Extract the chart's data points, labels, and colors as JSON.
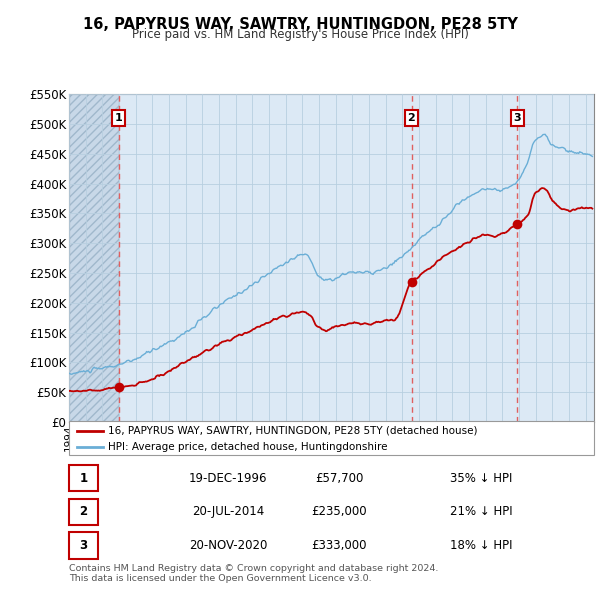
{
  "title": "16, PAPYRUS WAY, SAWTRY, HUNTINGDON, PE28 5TY",
  "subtitle": "Price paid vs. HM Land Registry's House Price Index (HPI)",
  "ylim": [
    0,
    550000
  ],
  "yticks": [
    0,
    50000,
    100000,
    150000,
    200000,
    250000,
    300000,
    350000,
    400000,
    450000,
    500000,
    550000
  ],
  "ytick_labels": [
    "£0",
    "£50K",
    "£100K",
    "£150K",
    "£200K",
    "£250K",
    "£300K",
    "£350K",
    "£400K",
    "£450K",
    "£500K",
    "£550K"
  ],
  "hpi_color": "#6aaed6",
  "price_color": "#c00000",
  "vline_color": "#e06060",
  "sale_dates": [
    1996.97,
    2014.55,
    2020.9
  ],
  "sale_prices": [
    57700,
    235000,
    333000
  ],
  "sale_labels": [
    "1",
    "2",
    "3"
  ],
  "xmin": 1994.0,
  "xmax": 2025.5,
  "legend_entry1": "16, PAPYRUS WAY, SAWTRY, HUNTINGDON, PE28 5TY (detached house)",
  "legend_entry2": "HPI: Average price, detached house, Huntingdonshire",
  "table_rows": [
    [
      "1",
      "19-DEC-1996",
      "£57,700",
      "35% ↓ HPI"
    ],
    [
      "2",
      "20-JUL-2014",
      "£235,000",
      "21% ↓ HPI"
    ],
    [
      "3",
      "20-NOV-2020",
      "£333,000",
      "18% ↓ HPI"
    ]
  ],
  "footnote1": "Contains HM Land Registry data © Crown copyright and database right 2024.",
  "footnote2": "This data is licensed under the Open Government Licence v3.0.",
  "plot_bg_color": "#dce9f5",
  "background_color": "#ffffff",
  "grid_color": "#b8cfe0",
  "hatch_color": "#c8d8e8"
}
